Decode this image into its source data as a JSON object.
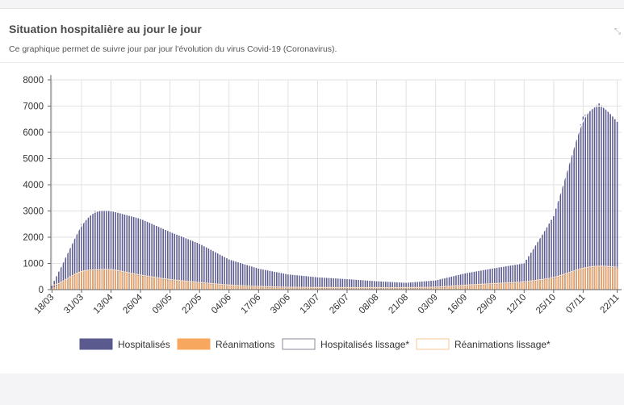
{
  "card": {
    "title": "Situation hospitalière au jour le jour",
    "subtitle": "Ce graphique permet de suivre jour par jour l'évolution du virus Covid-19 (Coronavirus)."
  },
  "colors": {
    "hosp": "#5b5a8f",
    "rea": "#f7a85e",
    "hosp_smooth": "#ffffff",
    "rea_smooth": "#fde0c0",
    "grid": "#e2e2e2",
    "axis": "#666666"
  },
  "icons": {
    "expand": "expand-icon"
  },
  "chart_data": {
    "type": "bar",
    "x_start": "18/03",
    "x_end": "22/11",
    "x_tick_labels": [
      "18/03",
      "31/03",
      "13/04",
      "26/04",
      "09/05",
      "22/05",
      "04/06",
      "17/06",
      "30/06",
      "13/07",
      "26/07",
      "08/08",
      "21/08",
      "03/09",
      "16/09",
      "29/09",
      "12/10",
      "25/10",
      "07/11",
      "22/11"
    ],
    "y_ticks": [
      0,
      1000,
      2000,
      3000,
      4000,
      5000,
      6000,
      7000,
      8000
    ],
    "ylim": [
      0,
      8000
    ],
    "keypoints_hosp": [
      {
        "day": "18/03",
        "value": 150
      },
      {
        "day": "31/03",
        "value": 2500
      },
      {
        "day": "06/04",
        "value": 3000
      },
      {
        "day": "13/04",
        "value": 3000
      },
      {
        "day": "26/04",
        "value": 2700
      },
      {
        "day": "09/05",
        "value": 2200
      },
      {
        "day": "22/05",
        "value": 1750
      },
      {
        "day": "04/06",
        "value": 1150
      },
      {
        "day": "17/06",
        "value": 800
      },
      {
        "day": "30/06",
        "value": 580
      },
      {
        "day": "13/07",
        "value": 470
      },
      {
        "day": "26/07",
        "value": 400
      },
      {
        "day": "08/08",
        "value": 320
      },
      {
        "day": "21/08",
        "value": 260
      },
      {
        "day": "03/09",
        "value": 350
      },
      {
        "day": "16/09",
        "value": 620
      },
      {
        "day": "29/09",
        "value": 820
      },
      {
        "day": "12/10",
        "value": 1000
      },
      {
        "day": "25/10",
        "value": 2800
      },
      {
        "day": "07/11",
        "value": 6600
      },
      {
        "day": "14/11",
        "value": 7100
      },
      {
        "day": "18/11",
        "value": 6800
      },
      {
        "day": "22/11",
        "value": 6400
      }
    ],
    "keypoints_rea": [
      {
        "day": "18/03",
        "value": 50
      },
      {
        "day": "31/03",
        "value": 700
      },
      {
        "day": "13/04",
        "value": 750
      },
      {
        "day": "26/04",
        "value": 520
      },
      {
        "day": "09/05",
        "value": 350
      },
      {
        "day": "22/05",
        "value": 240
      },
      {
        "day": "04/06",
        "value": 140
      },
      {
        "day": "17/06",
        "value": 90
      },
      {
        "day": "30/06",
        "value": 60
      },
      {
        "day": "13/07",
        "value": 50
      },
      {
        "day": "08/08",
        "value": 45
      },
      {
        "day": "21/08",
        "value": 45
      },
      {
        "day": "03/09",
        "value": 60
      },
      {
        "day": "16/09",
        "value": 140
      },
      {
        "day": "29/09",
        "value": 200
      },
      {
        "day": "12/10",
        "value": 260
      },
      {
        "day": "25/10",
        "value": 420
      },
      {
        "day": "07/11",
        "value": 800
      },
      {
        "day": "14/11",
        "value": 880
      },
      {
        "day": "22/11",
        "value": 820
      }
    ],
    "series": [
      {
        "name": "Hospitalisés",
        "kind": "bar",
        "color": "#5b5a8f"
      },
      {
        "name": "Réanimations",
        "kind": "bar",
        "color": "#f7a85e"
      },
      {
        "name": "Hospitalisés lissage*",
        "kind": "line",
        "color": "#ffffff"
      },
      {
        "name": "Réanimations lissage*",
        "kind": "line",
        "color": "#fde0c0"
      }
    ],
    "legend_position": "bottom",
    "grid": true
  }
}
